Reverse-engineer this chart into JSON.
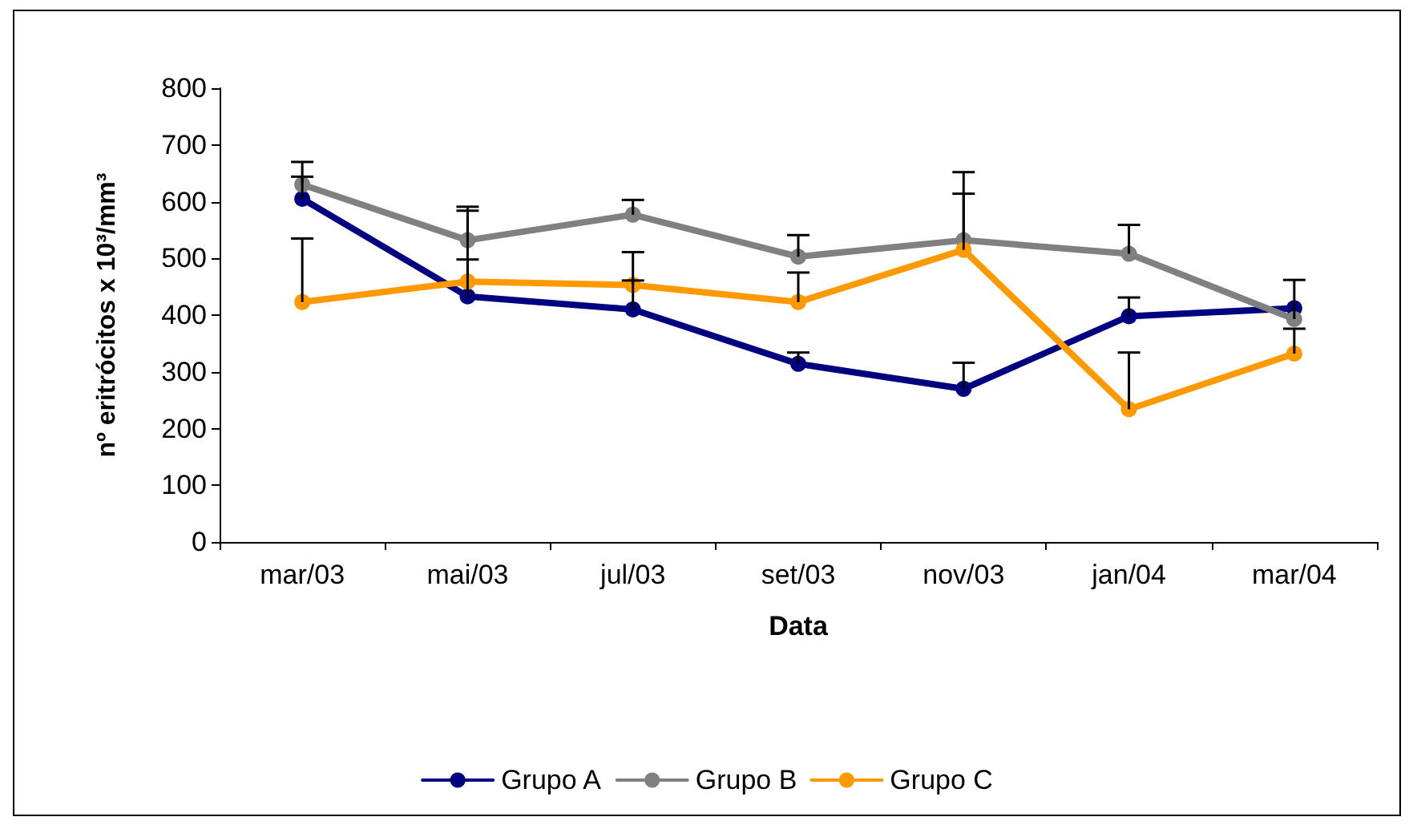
{
  "chart_data": {
    "type": "line",
    "xlabel": "Data",
    "ylabel": "nº eritrócitos x 10³/mm³",
    "categories": [
      "mar/03",
      "mai/03",
      "jul/03",
      "set/03",
      "nov/03",
      "jan/04",
      "mar/04"
    ],
    "series": [
      {
        "name": "Grupo A",
        "color": "#000080",
        "values": [
          605,
          433,
          410,
          314,
          270,
          398,
          412
        ],
        "errors": [
          [
            605,
            644
          ],
          [
            433,
            584
          ],
          [
            410,
            461
          ],
          [
            314,
            334
          ],
          [
            270,
            316
          ],
          [
            398,
            431
          ],
          null
        ]
      },
      {
        "name": "Grupo B",
        "color": "#808080",
        "values": [
          630,
          532,
          577,
          503,
          532,
          508,
          393
        ],
        "errors": [
          [
            630,
            670
          ],
          [
            532,
            591
          ],
          [
            577,
            603
          ],
          [
            503,
            541
          ],
          [
            532,
            652
          ],
          [
            508,
            559
          ],
          [
            393,
            462
          ]
        ]
      },
      {
        "name": "Grupo C",
        "color": "#ff9900",
        "values": [
          423,
          459,
          453,
          423,
          515,
          234,
          332
        ],
        "errors": [
          [
            423,
            535
          ],
          [
            459,
            498
          ],
          [
            453,
            511
          ],
          [
            423,
            475
          ],
          [
            515,
            614
          ],
          [
            234,
            334
          ],
          [
            332,
            376
          ]
        ]
      }
    ],
    "ylim": [
      0,
      800
    ],
    "yticks": [
      0,
      100,
      200,
      300,
      400,
      500,
      600,
      700,
      800
    ],
    "grid": false,
    "legend": "bottom",
    "marker": "circle",
    "line_style": "solid"
  }
}
